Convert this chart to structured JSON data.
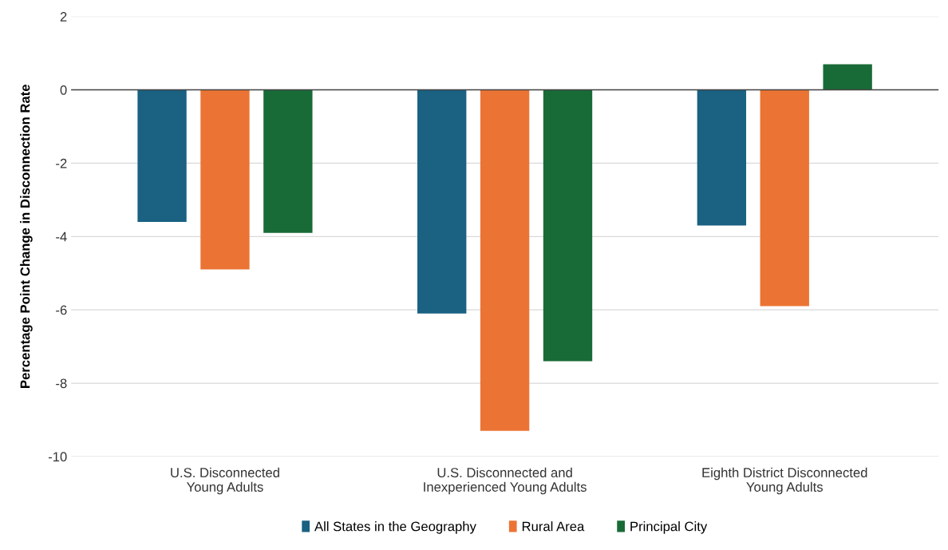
{
  "chart_data": {
    "type": "bar",
    "ylabel": "Percentage Point Change in Disconnection Rate",
    "categories": [
      "U.S. Disconnected\nYoung Adults",
      "U.S. Disconnected and\nInexperienced Young Adults",
      "Eighth District Disconnected\nYoung Adults"
    ],
    "series": [
      {
        "name": "All States in the Geography",
        "color": "#1a6182",
        "values": [
          -3.6,
          -6.1,
          -3.7
        ]
      },
      {
        "name": "Rural Area",
        "color": "#eb7434",
        "values": [
          -4.9,
          -9.3,
          -5.9
        ]
      },
      {
        "name": "Principal City",
        "color": "#186b37",
        "values": [
          -3.9,
          -7.4,
          0.7
        ]
      }
    ],
    "ylim": [
      -10,
      2
    ],
    "yticks": [
      -10,
      -8,
      -6,
      -4,
      -2,
      0,
      2
    ],
    "grid": "y",
    "legend": "bottom",
    "ref_lines": [
      {
        "axis": "y",
        "value": 0,
        "label": null,
        "color": "#444444"
      }
    ]
  }
}
